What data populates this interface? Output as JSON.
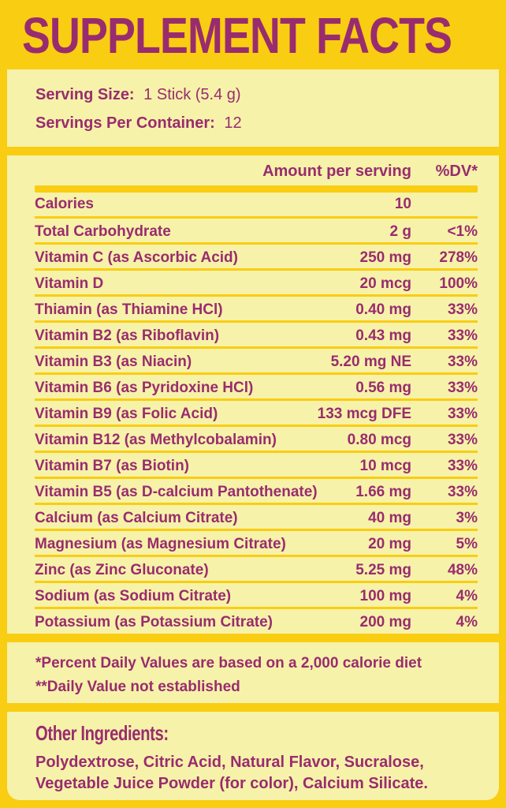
{
  "colors": {
    "background_gold": "#F9CD11",
    "panel_yellow": "#F7F2A9",
    "text_magenta": "#992C6F"
  },
  "title": "SUPPLEMENT FACTS",
  "serving": {
    "size_label": "Serving Size:",
    "size_value": "1 Stick (5.4 g)",
    "container_label": "Servings Per Container:",
    "container_value": "12"
  },
  "table": {
    "amount_header": "Amount per serving",
    "dv_header": "%DV*",
    "rows": [
      {
        "name": "Calories",
        "amount": "10",
        "dv": ""
      },
      {
        "name": "Total Carbohydrate",
        "amount": "2 g",
        "dv": "<1%"
      },
      {
        "name": "Vitamin C (as Ascorbic Acid)",
        "amount": "250 mg",
        "dv": "278%"
      },
      {
        "name": "Vitamin D",
        "amount": "20 mcg",
        "dv": "100%"
      },
      {
        "name": "Thiamin (as Thiamine HCl)",
        "amount": "0.40 mg",
        "dv": "33%"
      },
      {
        "name": "Vitamin B2 (as Riboflavin)",
        "amount": "0.43 mg",
        "dv": "33%"
      },
      {
        "name": "Vitamin B3 (as Niacin)",
        "amount": "5.20 mg NE",
        "dv": "33%"
      },
      {
        "name": "Vitamin B6 (as Pyridoxine HCl)",
        "amount": "0.56 mg",
        "dv": "33%"
      },
      {
        "name": "Vitamin B9 (as Folic Acid)",
        "amount": "133 mcg DFE",
        "dv": "33%"
      },
      {
        "name": "Vitamin B12 (as Methylcobalamin)",
        "amount": "0.80 mcg",
        "dv": "33%"
      },
      {
        "name": "Vitamin B7 (as Biotin)",
        "amount": "10 mcg",
        "dv": "33%"
      },
      {
        "name": "Vitamin B5 (as D-calcium Pantothenate)",
        "amount": "1.66 mg",
        "dv": "33%"
      },
      {
        "name": "Calcium (as Calcium Citrate)",
        "amount": "40 mg",
        "dv": "3%"
      },
      {
        "name": "Magnesium (as Magnesium Citrate)",
        "amount": "20 mg",
        "dv": "5%"
      },
      {
        "name": "Zinc (as Zinc Gluconate)",
        "amount": "5.25 mg",
        "dv": "48%"
      },
      {
        "name": "Sodium (as Sodium Citrate)",
        "amount": "100 mg",
        "dv": "4%"
      },
      {
        "name": "Potassium (as Potassium Citrate)",
        "amount": "200 mg",
        "dv": "4%"
      }
    ]
  },
  "footnotes": {
    "line1": "*Percent Daily Values are based on a 2,000 calorie diet",
    "line2": "**Daily Value not established"
  },
  "other_ingredients": {
    "heading": "Other Ingredients:",
    "text": "Polydextrose, Citric Acid, Natural Flavor, Sucralose, Vegetable Juice Powder (for color), Calcium Silicate."
  }
}
